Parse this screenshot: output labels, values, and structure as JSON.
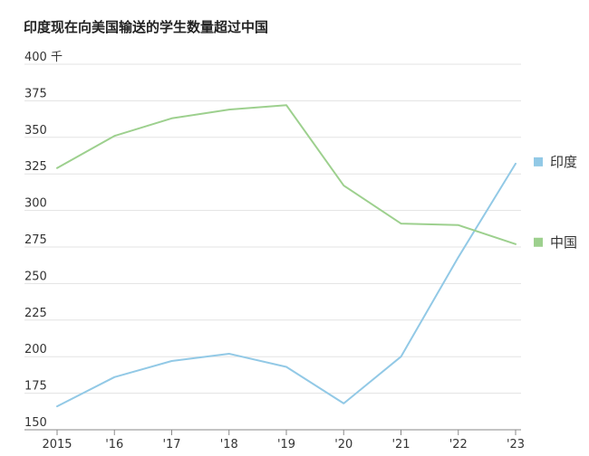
{
  "chart_data": {
    "type": "line",
    "title": "印度现在向美国输送的学生数量超过中国",
    "x": [
      "2015",
      "'16",
      "'17",
      "'18",
      "'19",
      "'20",
      "'21",
      "'22",
      "'23"
    ],
    "y_ticks": [
      "400 千",
      "375",
      "350",
      "325",
      "300",
      "275",
      "250",
      "225",
      "200",
      "175",
      "150"
    ],
    "y_tick_values": [
      400,
      375,
      350,
      325,
      300,
      275,
      250,
      225,
      200,
      175,
      150
    ],
    "ylim": [
      150,
      400
    ],
    "grid": true,
    "legend": "right",
    "series": [
      {
        "name": "印度",
        "color": "#92c9e6",
        "values": [
          166,
          186,
          197,
          202,
          193,
          168,
          200,
          268,
          332
        ]
      },
      {
        "name": "中国",
        "color": "#9dd08e",
        "values": [
          329,
          351,
          363,
          369,
          372,
          317,
          291,
          290,
          277
        ]
      }
    ]
  }
}
